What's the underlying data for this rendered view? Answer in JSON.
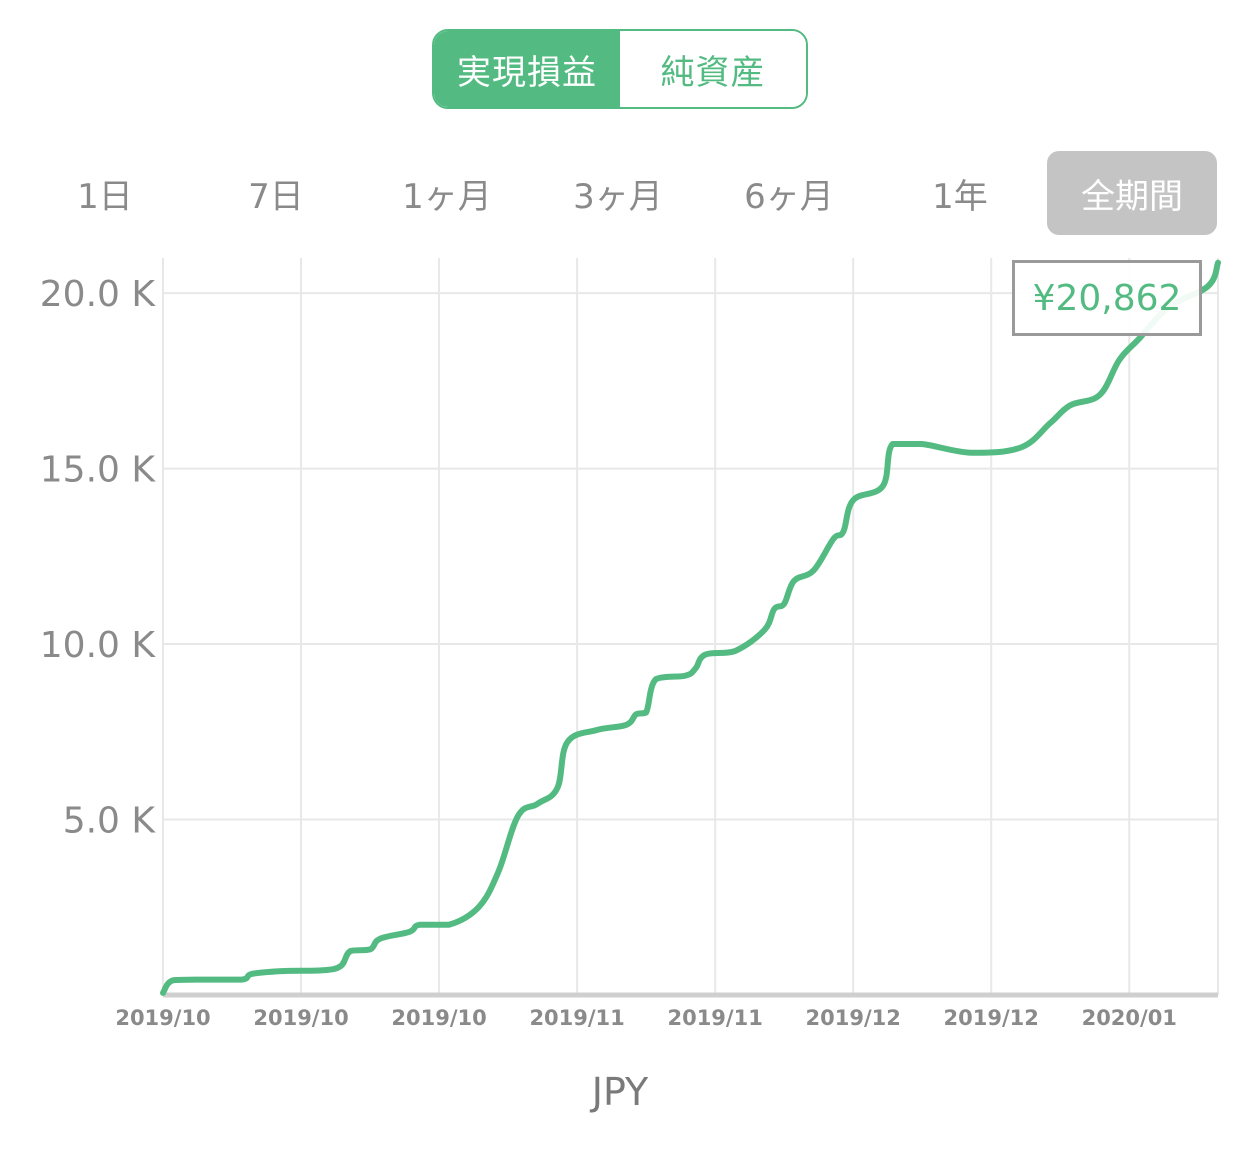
{
  "toggle": {
    "options": [
      "実現損益",
      "純資産"
    ],
    "selected": 0
  },
  "range_tabs": {
    "options": [
      "1日",
      "7日",
      "1ヶ月",
      "3ヶ月",
      "6ヶ月",
      "1年",
      "全期間"
    ],
    "selected": 6
  },
  "tooltip": {
    "value": "¥20,862"
  },
  "unit_label": "JPY",
  "colors": {
    "accent": "#53bb82",
    "selected_tab_bg": "#c4c4c4",
    "grid": "#e8e8e8",
    "axis": "#cfcfcf",
    "label": "#8a8a8a"
  },
  "chart_data": {
    "type": "line",
    "title": "",
    "xlabel": "",
    "ylabel": "",
    "ylim": [
      0,
      21000
    ],
    "xlim": [
      "2019-10-01",
      "2020-01-16"
    ],
    "y_ticks": [
      {
        "value": 20000,
        "label": "20.0 K"
      },
      {
        "value": 15000,
        "label": "15.0 K"
      },
      {
        "value": 10000,
        "label": "10.0 K"
      },
      {
        "value": 5000,
        "label": "5.0 K"
      }
    ],
    "x_ticks": [
      {
        "value": "2019-10-01",
        "label": "2019/10"
      },
      {
        "value": "2019-10-15",
        "label": "2019/10"
      },
      {
        "value": "2019-10-29",
        "label": "2019/10"
      },
      {
        "value": "2019-11-12",
        "label": "2019/11"
      },
      {
        "value": "2019-11-26",
        "label": "2019/11"
      },
      {
        "value": "2019-12-10",
        "label": "2019/12"
      },
      {
        "value": "2019-12-24",
        "label": "2019/12"
      },
      {
        "value": "2020-01-07",
        "label": "2020/01"
      }
    ],
    "grid": true,
    "series": [
      {
        "points": [
          [
            "2019-10-01",
            60
          ],
          [
            "2019-10-02",
            420
          ],
          [
            "2019-10-05",
            440
          ],
          [
            "2019-10-09",
            440
          ],
          [
            "2019-10-10",
            600
          ],
          [
            "2019-10-13",
            680
          ],
          [
            "2019-10-17",
            700
          ],
          [
            "2019-10-19",
            820
          ],
          [
            "2019-10-20",
            1250
          ],
          [
            "2019-10-22",
            1300
          ],
          [
            "2019-10-23",
            1600
          ],
          [
            "2019-10-26",
            1800
          ],
          [
            "2019-10-27",
            2000
          ],
          [
            "2019-10-30",
            2000
          ],
          [
            "2019-11-02",
            2500
          ],
          [
            "2019-11-04",
            3500
          ],
          [
            "2019-11-06",
            5100
          ],
          [
            "2019-11-08",
            5450
          ],
          [
            "2019-11-10",
            5900
          ],
          [
            "2019-11-11",
            7200
          ],
          [
            "2019-11-14",
            7550
          ],
          [
            "2019-11-17",
            7700
          ],
          [
            "2019-11-18",
            8000
          ],
          [
            "2019-11-19",
            8050
          ],
          [
            "2019-11-20",
            9000
          ],
          [
            "2019-11-23",
            9100
          ],
          [
            "2019-11-24",
            9300
          ],
          [
            "2019-11-25",
            9700
          ],
          [
            "2019-11-28",
            9800
          ],
          [
            "2019-12-01",
            10400
          ],
          [
            "2019-12-02",
            11000
          ],
          [
            "2019-12-03",
            11150
          ],
          [
            "2019-12-04",
            11800
          ],
          [
            "2019-12-06",
            12100
          ],
          [
            "2019-12-08",
            13000
          ],
          [
            "2019-12-09",
            13200
          ],
          [
            "2019-12-10",
            14100
          ],
          [
            "2019-12-13",
            14500
          ],
          [
            "2019-12-14",
            15700
          ],
          [
            "2019-12-17",
            15700
          ],
          [
            "2019-12-22",
            15450
          ],
          [
            "2019-12-27",
            15600
          ],
          [
            "2019-12-30",
            16300
          ],
          [
            "2020-01-01",
            16800
          ],
          [
            "2020-01-04",
            17100
          ],
          [
            "2020-01-06",
            18100
          ],
          [
            "2020-01-08",
            18700
          ],
          [
            "2020-01-11",
            19600
          ],
          [
            "2020-01-15",
            20200
          ],
          [
            "2020-01-16",
            20862
          ]
        ]
      }
    ]
  }
}
